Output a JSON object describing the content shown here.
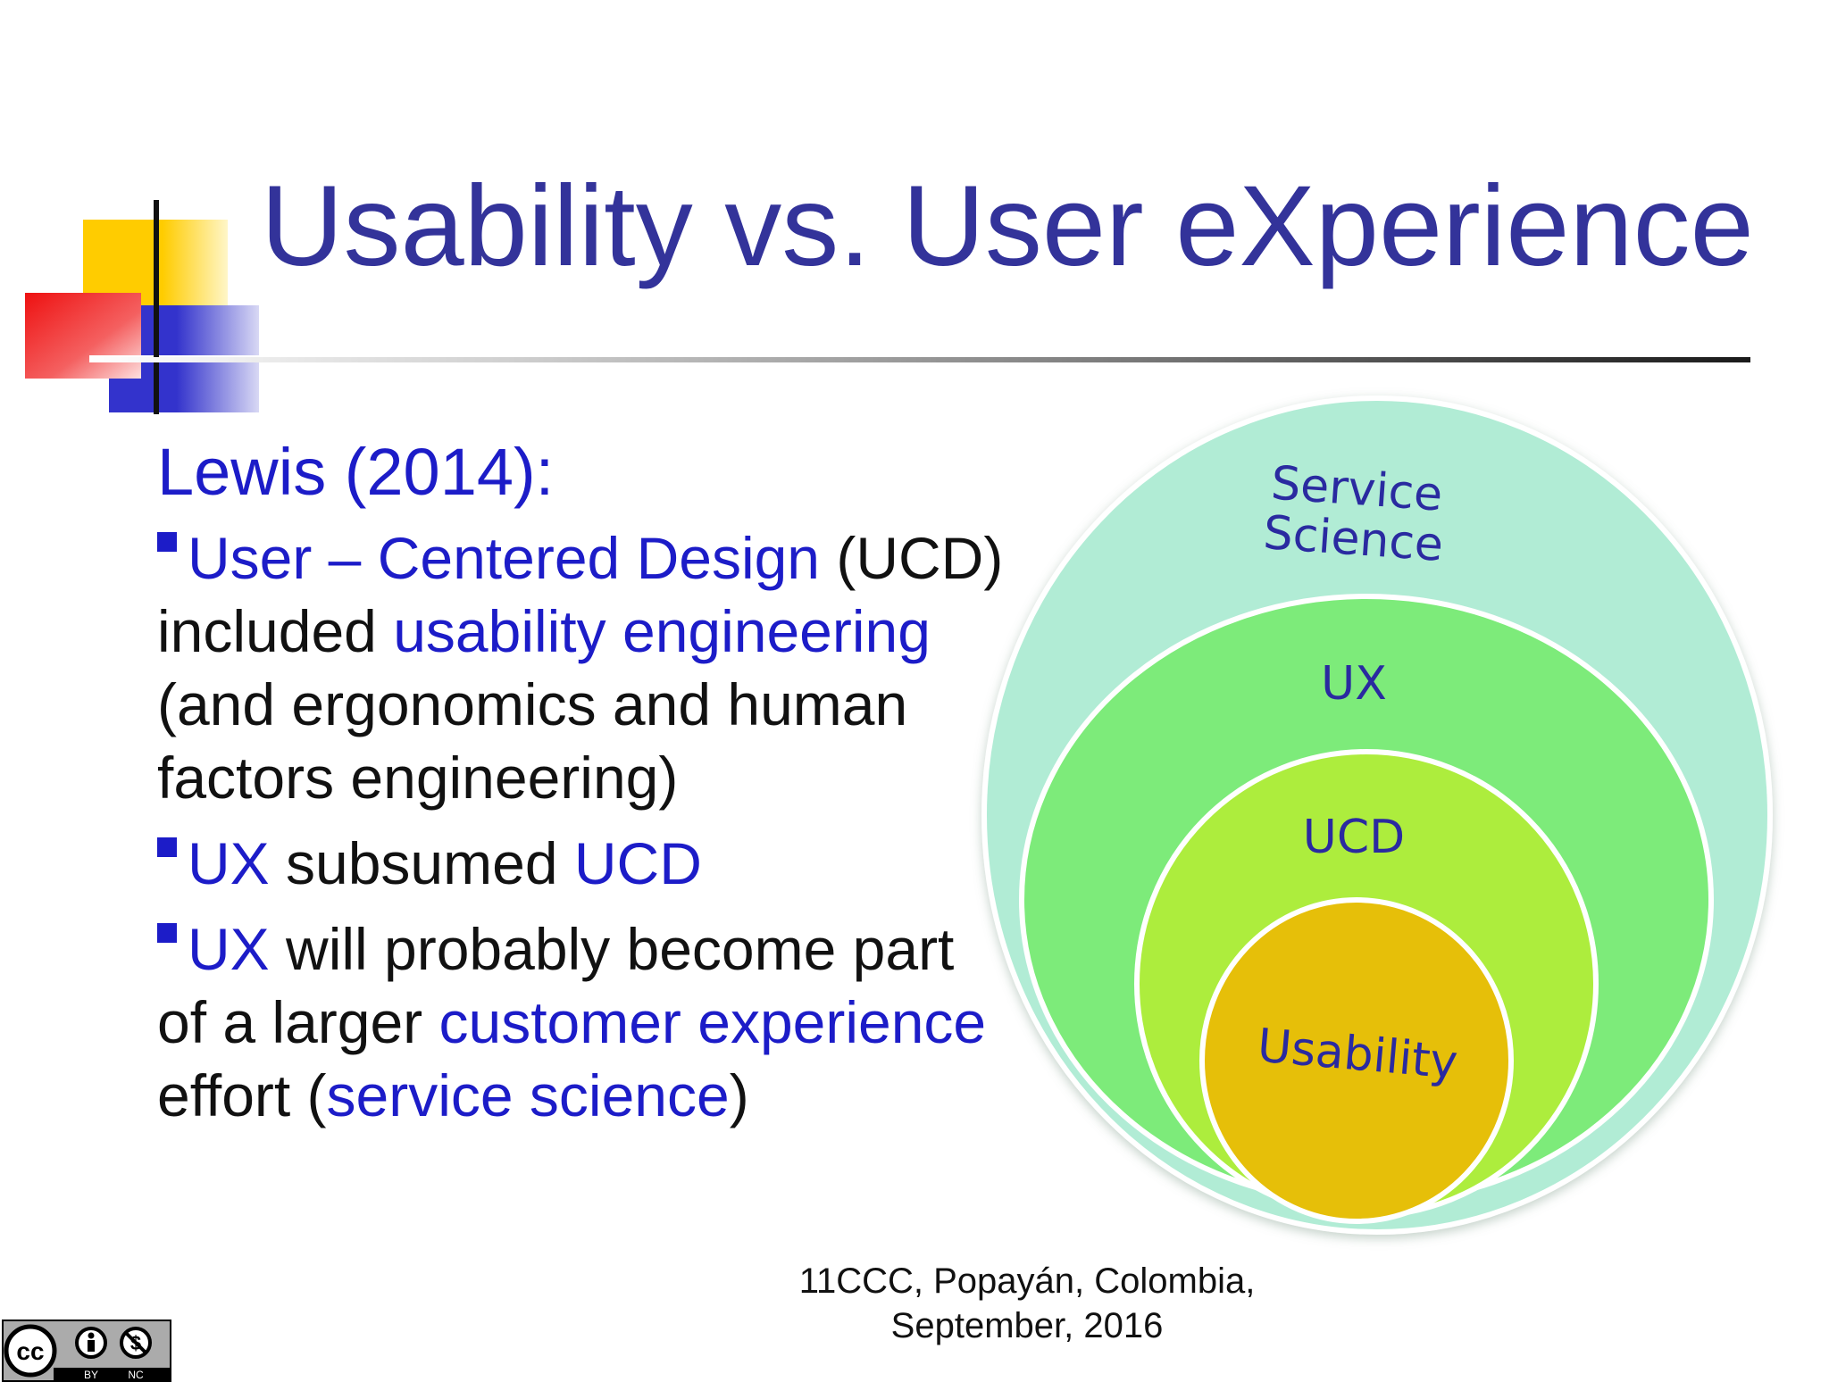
{
  "slide": {
    "title": "Usability vs. User eXperience",
    "heading": "Lewis (2014):",
    "bullets": [
      [
        {
          "t": "User – Centered Design",
          "hl": true
        },
        {
          "t": " (UCD) included ",
          "hl": false
        },
        {
          "t": "usability engineering",
          "hl": true
        },
        {
          "t": " (and ergonomics and human factors engineering)",
          "hl": false
        }
      ],
      [
        {
          "t": "UX",
          "hl": true
        },
        {
          "t": " subsumed ",
          "hl": false
        },
        {
          "t": "UCD",
          "hl": true
        }
      ],
      [
        {
          "t": "UX",
          "hl": true
        },
        {
          "t": " will probably become part of a larger ",
          "hl": false
        },
        {
          "t": "customer experience",
          "hl": true
        },
        {
          "t": " effort (",
          "hl": false
        },
        {
          "t": "service science",
          "hl": true
        },
        {
          "t": ")",
          "hl": false
        }
      ]
    ],
    "footer": [
      "11CCC, Popayán, Colombia,",
      "September, 2016"
    ]
  },
  "diagram": {
    "layers": [
      {
        "label": [
          "Service",
          "Science"
        ],
        "color": "#b1ecd5"
      },
      {
        "label": [
          "UX"
        ],
        "color": "#7deb7a"
      },
      {
        "label": [
          "UCD"
        ],
        "color": "#aded3d"
      },
      {
        "label": [
          "Usability"
        ],
        "color": "#e6bf09"
      }
    ],
    "label_color": "#2a2aa0"
  },
  "colors": {
    "title": "#33339a",
    "highlight": "#1c1cc8",
    "text": "#111111",
    "logo_yellow": "#ffcc00",
    "logo_red": "#ee1111",
    "logo_blue": "#3333cc"
  },
  "license": {
    "icons": [
      "cc-icon",
      "by-icon",
      "nc-icon"
    ],
    "labels": [
      "BY",
      "NC"
    ]
  }
}
